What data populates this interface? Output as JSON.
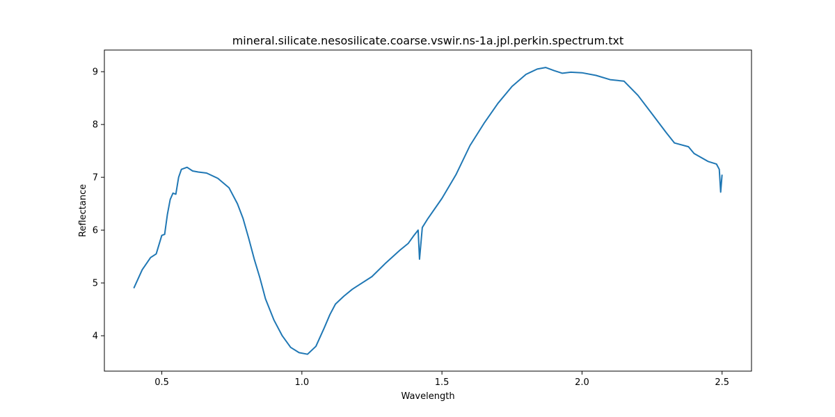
{
  "chart_data": {
    "type": "line",
    "title": "mineral.silicate.nesosilicate.coarse.vswir.ns-1a.jpl.perkin.spectrum.txt",
    "xlabel": "Wavelength",
    "ylabel": "Reflectance",
    "xlim": [
      0.295,
      2.605
    ],
    "ylim": [
      3.33,
      9.41
    ],
    "xticks": [
      0.5,
      1.0,
      1.5,
      2.0,
      2.5
    ],
    "xtick_labels": [
      "0.5",
      "1.0",
      "1.5",
      "2.0",
      "2.5"
    ],
    "yticks": [
      4,
      5,
      6,
      7,
      8,
      9
    ],
    "ytick_labels": [
      "4",
      "5",
      "6",
      "7",
      "8",
      "9"
    ],
    "grid": false,
    "legend": "none",
    "color": "#1f77b4",
    "series": [
      {
        "x": [
          0.4,
          0.43,
          0.46,
          0.48,
          0.5,
          0.51,
          0.52,
          0.53,
          0.54,
          0.55,
          0.56,
          0.57,
          0.59,
          0.61,
          0.63,
          0.66,
          0.7,
          0.74,
          0.77,
          0.79,
          0.81,
          0.83,
          0.85,
          0.86,
          0.87,
          0.9,
          0.93,
          0.96,
          0.99,
          1.02,
          1.05,
          1.08,
          1.1,
          1.12,
          1.15,
          1.18,
          1.2,
          1.25,
          1.3,
          1.35,
          1.38,
          1.4,
          1.415,
          1.42,
          1.43,
          1.45,
          1.5,
          1.55,
          1.6,
          1.65,
          1.7,
          1.75,
          1.8,
          1.84,
          1.87,
          1.9,
          1.93,
          1.96,
          2.0,
          2.05,
          2.1,
          2.15,
          2.2,
          2.25,
          2.3,
          2.33,
          2.38,
          2.4,
          2.45,
          2.48,
          2.49,
          2.495,
          2.5
        ],
        "y": [
          4.9,
          5.25,
          5.48,
          5.55,
          5.9,
          5.92,
          6.3,
          6.58,
          6.7,
          6.68,
          7.0,
          7.15,
          7.19,
          7.12,
          7.1,
          7.08,
          6.98,
          6.8,
          6.5,
          6.22,
          5.85,
          5.45,
          5.1,
          4.9,
          4.7,
          4.3,
          4.0,
          3.78,
          3.68,
          3.65,
          3.8,
          4.15,
          4.4,
          4.6,
          4.75,
          4.88,
          4.95,
          5.12,
          5.38,
          5.62,
          5.75,
          5.9,
          6.0,
          5.45,
          6.05,
          6.22,
          6.6,
          7.05,
          7.6,
          8.02,
          8.4,
          8.72,
          8.95,
          9.05,
          9.08,
          9.02,
          8.97,
          8.99,
          8.98,
          8.93,
          8.85,
          8.82,
          8.55,
          8.2,
          7.85,
          7.65,
          7.58,
          7.45,
          7.3,
          7.25,
          7.15,
          6.72,
          7.05
        ]
      }
    ]
  }
}
